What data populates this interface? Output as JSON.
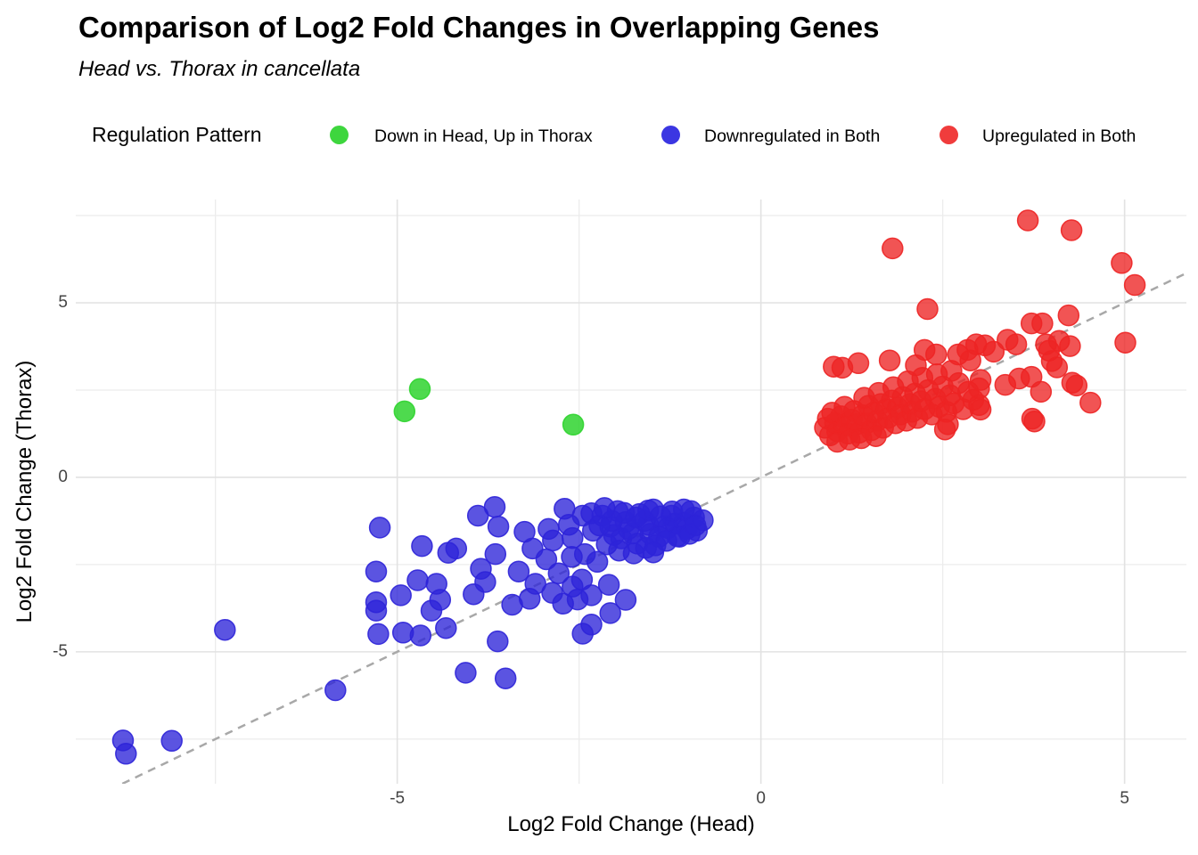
{
  "header": {
    "title": "Comparison of Log2 Fold Changes in Overlapping Genes",
    "subtitle": "Head vs. Thorax in cancellata"
  },
  "legend": {
    "title": "Regulation Pattern",
    "items": [
      {
        "label": "Down in Head, Up in Thorax",
        "color": "#3ed63e"
      },
      {
        "label": "Downregulated in Both",
        "color": "#3b36e2"
      },
      {
        "label": "Upregulated in Both",
        "color": "#f03c3c"
      }
    ]
  },
  "axes": {
    "x": {
      "label": "Log2 Fold Change (Head)",
      "ticks": [
        "-5",
        "0",
        "5"
      ]
    },
    "y": {
      "label": "Log2 Fold Change (Thorax)",
      "ticks": [
        "5",
        "0",
        "-5"
      ]
    }
  },
  "chart_data": {
    "type": "scatter",
    "title": "Comparison of Log2 Fold Changes in Overlapping Genes",
    "subtitle": "Head vs. Thorax in cancellata",
    "xlabel": "Log2 Fold Change (Head)",
    "ylabel": "Log2 Fold Change (Thorax)",
    "xlim": [
      -9.42,
      5.85
    ],
    "ylim": [
      -8.78,
      7.96
    ],
    "x_major_ticks": [
      -5,
      0,
      5
    ],
    "y_major_ticks": [
      -5,
      0,
      5
    ],
    "x_minor_gridlines": [
      -7.5,
      -2.5,
      2.5
    ],
    "y_minor_gridlines": [
      -7.5,
      -2.5,
      2.5,
      7.5
    ],
    "grid": {
      "major_color": "#e2e2e2",
      "minor_color": "#ececec"
    },
    "identity_line": {
      "equation": "y = x",
      "style": "dashed",
      "color": "#a8a8a8"
    },
    "point_radius": 11.5,
    "series": [
      {
        "name": "Down in Head, Up in Thorax",
        "color": "#2fd42f",
        "fill_opacity": 0.85,
        "points": [
          [
            -4.69,
            2.53
          ],
          [
            -4.9,
            1.89
          ],
          [
            -2.58,
            1.51
          ]
        ]
      },
      {
        "name": "Downregulated in Both",
        "color": "#2d24d8",
        "fill_opacity": 0.78,
        "points": [
          [
            -8.77,
            -7.54
          ],
          [
            -8.73,
            -7.92
          ],
          [
            -8.1,
            -7.55
          ],
          [
            -7.37,
            -4.37
          ],
          [
            -5.85,
            -6.1
          ],
          [
            -5.29,
            -3.82
          ],
          [
            -5.26,
            -4.49
          ],
          [
            -5.29,
            -2.7
          ],
          [
            -5.29,
            -3.58
          ],
          [
            -5.24,
            -1.44
          ],
          [
            -4.95,
            -3.38
          ],
          [
            -4.92,
            -4.45
          ],
          [
            -4.68,
            -4.53
          ],
          [
            -4.53,
            -3.82
          ],
          [
            -4.46,
            -3.05
          ],
          [
            -4.41,
            -3.51
          ],
          [
            -4.66,
            -1.97
          ],
          [
            -4.3,
            -2.16
          ],
          [
            -4.19,
            -2.04
          ],
          [
            -4.33,
            -4.32
          ],
          [
            -4.06,
            -5.6
          ],
          [
            -3.62,
            -4.7
          ],
          [
            -3.51,
            -5.76
          ],
          [
            -3.85,
            -2.62
          ],
          [
            -3.79,
            -3.0
          ],
          [
            -3.89,
            -1.1
          ],
          [
            -3.61,
            -1.41
          ],
          [
            -3.33,
            -2.7
          ],
          [
            -3.25,
            -1.56
          ],
          [
            -3.1,
            -3.05
          ],
          [
            -3.14,
            -2.04
          ],
          [
            -2.87,
            -3.31
          ],
          [
            -2.92,
            -1.48
          ],
          [
            -2.86,
            -1.81
          ],
          [
            -2.78,
            -2.75
          ],
          [
            -2.7,
            -0.9
          ],
          [
            -2.64,
            -1.36
          ],
          [
            -2.59,
            -1.74
          ],
          [
            -2.59,
            -3.13
          ],
          [
            -2.46,
            -2.93
          ],
          [
            -2.45,
            -4.48
          ],
          [
            -2.33,
            -3.38
          ],
          [
            -2.33,
            -4.22
          ],
          [
            -2.09,
            -3.08
          ],
          [
            -2.07,
            -3.89
          ],
          [
            -1.86,
            -3.51
          ],
          [
            -2.45,
            -1.1
          ],
          [
            -2.33,
            -1.03
          ],
          [
            -2.31,
            -1.53
          ],
          [
            -2.18,
            -1.1
          ],
          [
            -2.07,
            -1.41
          ],
          [
            -1.97,
            -0.97
          ],
          [
            -1.86,
            -1.28
          ],
          [
            -1.76,
            -1.61
          ],
          [
            -1.67,
            -1.05
          ],
          [
            -1.55,
            -1.36
          ],
          [
            -1.48,
            -0.92
          ],
          [
            -1.33,
            -1.41
          ],
          [
            -1.23,
            -1.1
          ],
          [
            -1.15,
            -1.69
          ],
          [
            -1.06,
            -1.3
          ],
          [
            -0.96,
            -0.97
          ],
          [
            -0.88,
            -1.53
          ],
          [
            -0.8,
            -1.23
          ],
          [
            -1.92,
            -1.75
          ],
          [
            -1.7,
            -1.9
          ],
          [
            -1.52,
            -1.62
          ],
          [
            -1.4,
            -1.7
          ],
          [
            -1.28,
            -1.45
          ],
          [
            -1.18,
            -1.32
          ],
          [
            -1.02,
            -1.48
          ],
          [
            -0.92,
            -1.15
          ],
          [
            -1.6,
            -1.25
          ],
          [
            -1.82,
            -1.48
          ],
          [
            -2.02,
            -1.65
          ],
          [
            -2.12,
            -1.92
          ],
          [
            -1.95,
            -2.1
          ],
          [
            -1.75,
            -2.18
          ],
          [
            -1.58,
            -2.02
          ],
          [
            -1.45,
            -1.95
          ],
          [
            -1.3,
            -1.82
          ],
          [
            -1.12,
            -1.7
          ],
          [
            -0.98,
            -1.62
          ],
          [
            -0.9,
            -1.38
          ],
          [
            -1.06,
            -0.92
          ],
          [
            -1.22,
            -0.98
          ],
          [
            -1.38,
            -1.12
          ],
          [
            -1.55,
            -0.95
          ],
          [
            -1.72,
            -1.15
          ],
          [
            -1.88,
            -1.02
          ],
          [
            -2.05,
            -1.25
          ],
          [
            -2.22,
            -1.38
          ],
          [
            -2.42,
            -2.2
          ],
          [
            -2.25,
            -2.42
          ],
          [
            -2.6,
            -2.28
          ],
          [
            -2.95,
            -2.35
          ],
          [
            -3.42,
            -3.65
          ],
          [
            -3.18,
            -3.48
          ],
          [
            -2.72,
            -3.62
          ],
          [
            -2.52,
            -3.5
          ],
          [
            -3.65,
            -2.2
          ],
          [
            -3.95,
            -3.35
          ],
          [
            -4.72,
            -2.95
          ],
          [
            -2.15,
            -0.88
          ],
          [
            -1.48,
            -2.15
          ],
          [
            -3.66,
            -0.85
          ]
        ]
      },
      {
        "name": "Upregulated in Both",
        "color": "#ed2424",
        "fill_opacity": 0.78,
        "points": [
          [
            3.67,
            7.36
          ],
          [
            4.27,
            7.08
          ],
          [
            1.81,
            6.56
          ],
          [
            4.96,
            6.14
          ],
          [
            5.14,
            5.51
          ],
          [
            2.29,
            4.82
          ],
          [
            4.23,
            4.64
          ],
          [
            3.72,
            4.41
          ],
          [
            3.87,
            4.41
          ],
          [
            2.96,
            3.81
          ],
          [
            3.39,
            3.94
          ],
          [
            3.51,
            3.81
          ],
          [
            3.92,
            3.81
          ],
          [
            4.25,
            3.76
          ],
          [
            5.01,
            3.86
          ],
          [
            4.1,
            3.91
          ],
          [
            3.96,
            3.63
          ],
          [
            4.0,
            3.33
          ],
          [
            4.07,
            3.15
          ],
          [
            1.12,
            3.14
          ],
          [
            1.77,
            3.35
          ],
          [
            2.25,
            3.65
          ],
          [
            2.41,
            3.52
          ],
          [
            2.13,
            3.21
          ],
          [
            2.71,
            3.52
          ],
          [
            2.84,
            3.65
          ],
          [
            3.08,
            3.78
          ],
          [
            3.2,
            3.6
          ],
          [
            1.34,
            3.27
          ],
          [
            1.0,
            3.17
          ],
          [
            3.02,
            2.79
          ],
          [
            3.0,
            2.07
          ],
          [
            3.02,
            1.94
          ],
          [
            3.76,
            1.6
          ],
          [
            4.53,
            2.14
          ],
          [
            3.73,
            1.68
          ],
          [
            3.55,
            2.83
          ],
          [
            3.72,
            2.88
          ],
          [
            3.36,
            2.65
          ],
          [
            3.85,
            2.45
          ],
          [
            4.28,
            2.71
          ],
          [
            4.34,
            2.63
          ],
          [
            2.53,
            1.37
          ],
          [
            2.57,
            1.52
          ],
          [
            0.88,
            1.42
          ],
          [
            0.95,
            1.2
          ],
          [
            1.02,
            1.55
          ],
          [
            1.05,
            1.32
          ],
          [
            1.1,
            1.75
          ],
          [
            1.15,
            1.48
          ],
          [
            1.2,
            1.25
          ],
          [
            1.25,
            1.65
          ],
          [
            1.28,
            1.9
          ],
          [
            1.32,
            1.52
          ],
          [
            1.35,
            1.28
          ],
          [
            1.4,
            1.78
          ],
          [
            1.45,
            1.55
          ],
          [
            1.48,
            2.05
          ],
          [
            1.52,
            1.35
          ],
          [
            1.55,
            1.85
          ],
          [
            1.6,
            1.62
          ],
          [
            1.65,
            2.1
          ],
          [
            1.68,
            1.42
          ],
          [
            1.72,
            1.95
          ],
          [
            1.75,
            1.7
          ],
          [
            1.8,
            2.2
          ],
          [
            1.85,
            1.55
          ],
          [
            1.88,
            2.0
          ],
          [
            1.92,
            1.8
          ],
          [
            1.95,
            2.3
          ],
          [
            2.0,
            1.62
          ],
          [
            2.05,
            2.1
          ],
          [
            2.08,
            1.88
          ],
          [
            2.12,
            2.4
          ],
          [
            2.15,
            1.7
          ],
          [
            2.2,
            2.18
          ],
          [
            2.25,
            1.95
          ],
          [
            2.3,
            2.5
          ],
          [
            2.35,
            1.8
          ],
          [
            2.4,
            2.25
          ],
          [
            2.45,
            2.02
          ],
          [
            2.5,
            2.6
          ],
          [
            2.55,
            1.88
          ],
          [
            2.6,
            2.35
          ],
          [
            2.65,
            2.12
          ],
          [
            2.72,
            2.7
          ],
          [
            2.78,
            1.95
          ],
          [
            2.85,
            2.45
          ],
          [
            2.92,
            2.22
          ],
          [
            3.0,
            2.55
          ],
          [
            1.22,
            1.08
          ],
          [
            1.38,
            1.12
          ],
          [
            1.58,
            1.18
          ],
          [
            1.05,
            1.02
          ],
          [
            0.92,
            1.68
          ],
          [
            1.42,
            2.28
          ],
          [
            1.62,
            2.42
          ],
          [
            1.82,
            2.58
          ],
          [
            2.02,
            2.75
          ],
          [
            2.22,
            2.85
          ],
          [
            2.42,
            2.95
          ],
          [
            2.62,
            3.05
          ],
          [
            1.15,
            2.02
          ],
          [
            0.98,
            1.85
          ],
          [
            2.88,
            3.35
          ]
        ]
      }
    ]
  }
}
